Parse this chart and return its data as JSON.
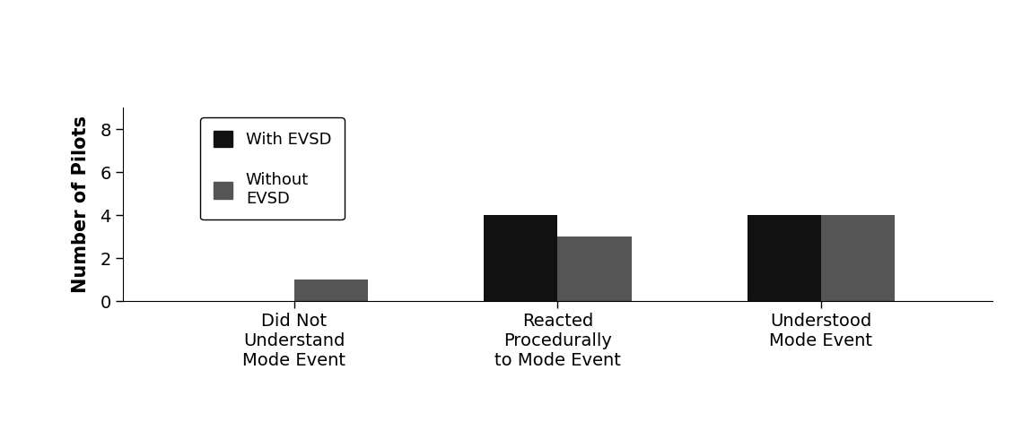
{
  "categories": [
    "Did Not\nUnderstand\nMode Event",
    "Reacted\nProcedurally\nto Mode Event",
    "Understood\nMode Event"
  ],
  "with_evsd": [
    0,
    4,
    4
  ],
  "without_evsd": [
    1,
    3,
    4
  ],
  "color_with": "#111111",
  "color_without": "#555555",
  "ylabel": "Number of Pilots",
  "ylim": [
    0,
    9
  ],
  "yticks": [
    0,
    2,
    4,
    6,
    8
  ],
  "legend_with": "With EVSD",
  "legend_without": "Without\nEVSD",
  "bar_width": 0.28,
  "tick_fontsize": 14,
  "ylabel_fontsize": 15,
  "legend_fontsize": 13
}
